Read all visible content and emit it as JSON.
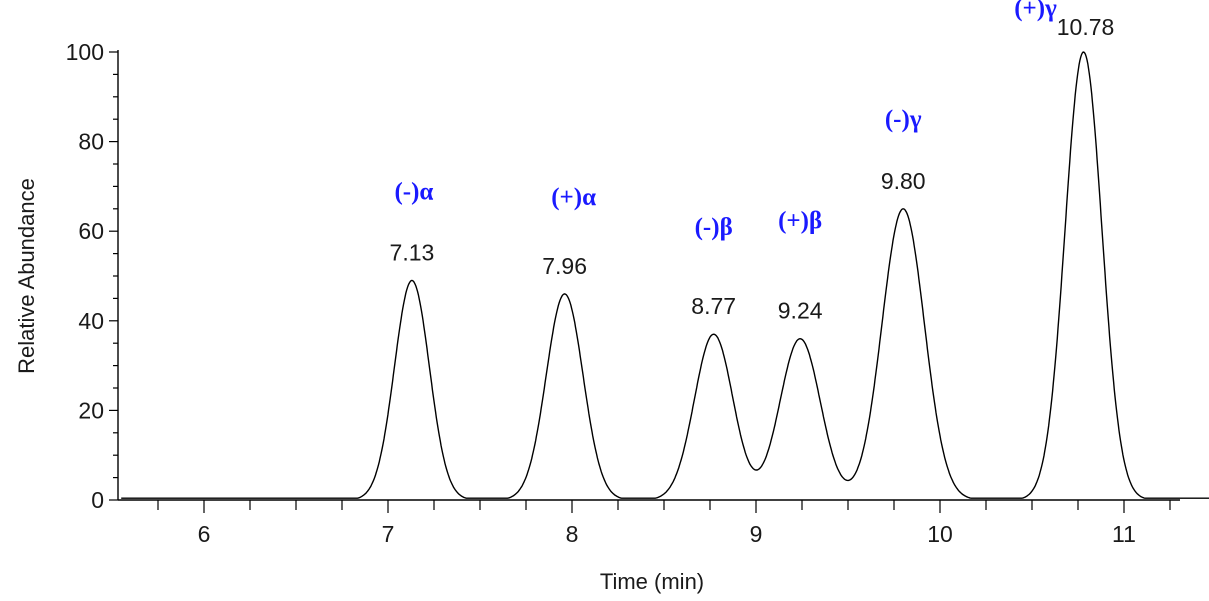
{
  "chart_data": {
    "type": "line",
    "xlabel": "Time (min)",
    "ylabel": "Relative Abundance",
    "xlim": [
      5.55,
      11.5
    ],
    "ylim": [
      0,
      100
    ],
    "x_ticks": [
      "6",
      "7",
      "8",
      "9",
      "10",
      "11"
    ],
    "y_ticks": [
      "0",
      "20",
      "40",
      "60",
      "80",
      "100"
    ],
    "grid": false,
    "colors": {
      "trace": "#000000",
      "isomer_labels": "#1a1aff",
      "axis": "#000000"
    },
    "peaks": [
      {
        "rt": 7.13,
        "height": 49,
        "sigma": 0.095,
        "rt_label": "7.13",
        "isomer": "(-)α"
      },
      {
        "rt": 7.96,
        "height": 46,
        "sigma": 0.1,
        "rt_label": "7.96",
        "isomer": "(+)α"
      },
      {
        "rt": 8.77,
        "height": 37,
        "sigma": 0.105,
        "rt_label": "8.77",
        "isomer": "(-)β"
      },
      {
        "rt": 9.24,
        "height": 36,
        "sigma": 0.11,
        "rt_label": "9.24",
        "isomer": "(+)β"
      },
      {
        "rt": 9.8,
        "height": 65,
        "sigma": 0.115,
        "rt_label": "9.80",
        "isomer": "(-)γ"
      },
      {
        "rt": 10.78,
        "height": 100,
        "sigma": 0.1,
        "rt_label": "10.78",
        "isomer": "(+)γ"
      }
    ]
  }
}
